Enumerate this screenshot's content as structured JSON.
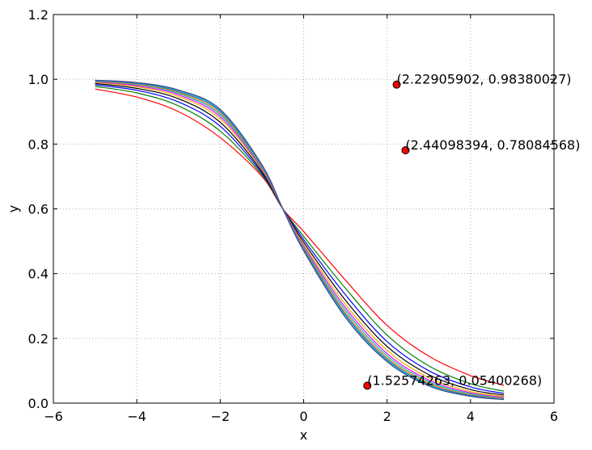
{
  "chart_data": {
    "type": "line",
    "title": "",
    "xlabel": "x",
    "ylabel": "y",
    "xlim": [
      -6,
      6
    ],
    "ylim": [
      0.0,
      1.2
    ],
    "grid": true,
    "xticks": [
      -6,
      -4,
      -2,
      0,
      2,
      4,
      6
    ],
    "xtick_labels": [
      "−6",
      "−4",
      "−2",
      "0",
      "2",
      "4",
      "6"
    ],
    "yticks": [
      0.0,
      0.2,
      0.4,
      0.6,
      0.8,
      1.0,
      1.2
    ],
    "ytick_labels": [
      "0.0",
      "0.2",
      "0.4",
      "0.6",
      "0.8",
      "1.0",
      "1.2"
    ],
    "series": [
      {
        "color": "#ff0000",
        "x": [
          -5,
          -4,
          -3,
          -2,
          -1,
          -0.5,
          0,
          1,
          2,
          3,
          4,
          4.8
        ],
        "values": [
          0.97,
          0.945,
          0.9,
          0.82,
          0.7,
          0.6,
          0.53,
          0.38,
          0.24,
          0.145,
          0.085,
          0.055
        ]
      },
      {
        "color": "#008000",
        "x": [
          -5,
          -4,
          -3,
          -2,
          -1,
          -0.5,
          0,
          1,
          2,
          3,
          4,
          4.8
        ],
        "values": [
          0.978,
          0.958,
          0.918,
          0.84,
          0.705,
          0.6,
          0.515,
          0.355,
          0.21,
          0.115,
          0.06,
          0.037
        ]
      },
      {
        "color": "#0000ff",
        "x": [
          -5,
          -4,
          -3,
          -2,
          -1,
          -0.5,
          0,
          1,
          2,
          3,
          4,
          4.8
        ],
        "values": [
          0.983,
          0.966,
          0.93,
          0.855,
          0.71,
          0.6,
          0.505,
          0.335,
          0.19,
          0.1,
          0.05,
          0.03
        ]
      },
      {
        "color": "#000000",
        "x": [
          -5,
          -4,
          -3,
          -2,
          -1,
          -0.5,
          0,
          1,
          2,
          3,
          4,
          4.8
        ],
        "values": [
          0.987,
          0.972,
          0.94,
          0.867,
          0.715,
          0.6,
          0.497,
          0.318,
          0.175,
          0.088,
          0.042,
          0.025
        ]
      },
      {
        "color": "#e8b000",
        "x": [
          -5,
          -4,
          -3,
          -2,
          -1,
          -0.5,
          0,
          1,
          2,
          3,
          4,
          4.8
        ],
        "values": [
          0.99,
          0.977,
          0.947,
          0.877,
          0.72,
          0.6,
          0.49,
          0.305,
          0.163,
          0.078,
          0.036,
          0.021
        ]
      },
      {
        "color": "#ff00ff",
        "x": [
          -5,
          -4,
          -3,
          -2,
          -1,
          -0.5,
          0,
          1,
          2,
          3,
          4,
          4.8
        ],
        "values": [
          0.992,
          0.98,
          0.952,
          0.884,
          0.724,
          0.6,
          0.485,
          0.295,
          0.153,
          0.071,
          0.032,
          0.018
        ]
      },
      {
        "color": "#00bfbf",
        "x": [
          -5,
          -4,
          -3,
          -2,
          -1,
          -0.5,
          0,
          1,
          2,
          3,
          4,
          4.8
        ],
        "values": [
          0.993,
          0.983,
          0.956,
          0.89,
          0.727,
          0.6,
          0.481,
          0.287,
          0.146,
          0.066,
          0.029,
          0.016
        ]
      },
      {
        "color": "#ff7f0e",
        "x": [
          -5,
          -4,
          -3,
          -2,
          -1,
          -0.5,
          0,
          1,
          2,
          3,
          4,
          4.8
        ],
        "values": [
          0.994,
          0.985,
          0.959,
          0.895,
          0.73,
          0.6,
          0.478,
          0.28,
          0.14,
          0.062,
          0.026,
          0.015
        ]
      },
      {
        "color": "#1f77b4",
        "x": [
          -5,
          -4,
          -3,
          -2,
          -1,
          -0.5,
          0,
          1,
          2,
          3,
          4,
          4.8
        ],
        "values": [
          0.995,
          0.987,
          0.962,
          0.9,
          0.732,
          0.6,
          0.475,
          0.274,
          0.135,
          0.058,
          0.024,
          0.013
        ]
      },
      {
        "color": "#17becf",
        "x": [
          -5,
          -4,
          -3,
          -2,
          -1,
          -0.5,
          0,
          1,
          2,
          3,
          4,
          4.8
        ],
        "values": [
          0.996,
          0.989,
          0.965,
          0.904,
          0.734,
          0.6,
          0.472,
          0.269,
          0.131,
          0.055,
          0.022,
          0.012
        ]
      },
      {
        "color": "#3f3f8f",
        "x": [
          -5,
          -4,
          -3,
          -2,
          -1,
          -0.5,
          0,
          1,
          2,
          3,
          4,
          4.8
        ],
        "values": [
          0.997,
          0.99,
          0.967,
          0.907,
          0.736,
          0.6,
          0.47,
          0.265,
          0.128,
          0.053,
          0.021,
          0.011
        ]
      }
    ],
    "points": [
      {
        "x": 2.22905902,
        "y": 0.98380027,
        "label": "(2.22905902, 0.98380027)",
        "color": "#ff0000"
      },
      {
        "x": 2.44098394,
        "y": 0.78084568,
        "label": "(2.44098394, 0.78084568)",
        "color": "#ff0000"
      },
      {
        "x": 1.52574263,
        "y": 0.05400268,
        "label": "(1.52574263, 0.05400268)",
        "color": "#ff0000"
      }
    ]
  }
}
